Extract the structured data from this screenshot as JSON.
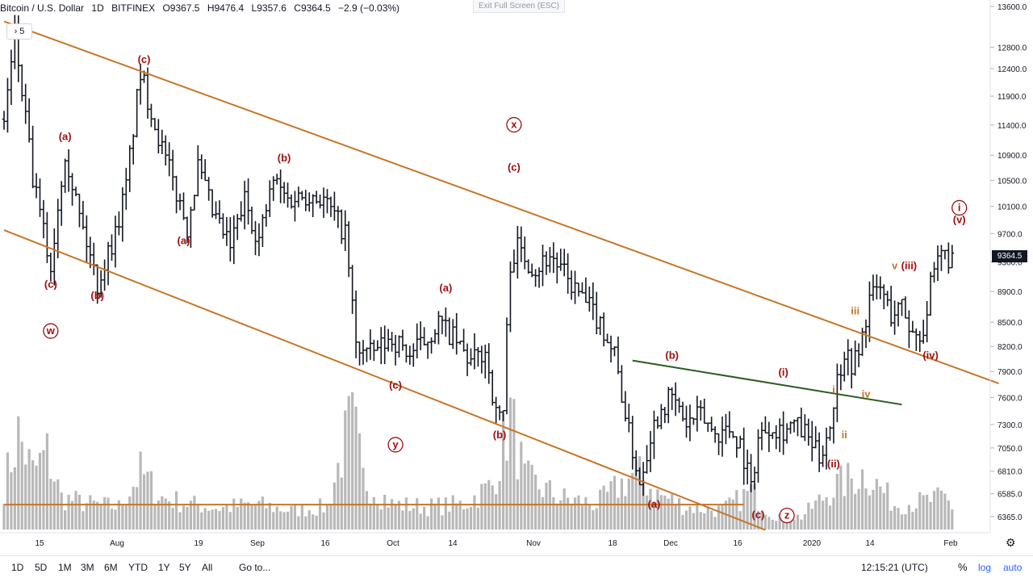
{
  "header": {
    "symbol": "Bitcoin / U.S. Dollar",
    "interval": "1D",
    "exchange": "BITFINEX",
    "open": "O9367.5",
    "high": "H9476.4",
    "low": "L9357.6",
    "close": "C9364.5",
    "change": "−2.9 (−0.03%)"
  },
  "exit_fullscreen": "Exit Full Screen (ESC)",
  "collapse_button": "5",
  "current_price": "9364.5",
  "bottom_bar": {
    "timeframes": [
      "1D",
      "5D",
      "1M",
      "3M",
      "6M",
      "YTD",
      "1Y",
      "5Y",
      "All"
    ],
    "goto": "Go to...",
    "time": "12:15:21 (UTC)",
    "percent": "%",
    "log": "log",
    "auto": "auto"
  },
  "chart_data": {
    "type": "ohlc",
    "title": "",
    "y_axis": {
      "scale": "log",
      "range": [
        6250,
        13600
      ],
      "ticks": [
        6365,
        6585,
        6810,
        7050,
        7300,
        7600,
        7900,
        8200,
        8500,
        8900,
        9300,
        9700,
        10100,
        10500,
        10900,
        11400,
        11900,
        12400,
        12800,
        13600
      ],
      "tick_labels": [
        "6365.0",
        "6585.0",
        "6810.0",
        "7050.0",
        "7300.0",
        "7600.0",
        "7900.0",
        "8200.0",
        "8500.0",
        "8900.0",
        "9300.0",
        "9700.0",
        "10100.0",
        "10500.0",
        "10900.0",
        "11400.0",
        "11900.0",
        "12400.0",
        "12800.0",
        "13600.0"
      ]
    },
    "x_axis": {
      "tick_labels": [
        "15",
        "Aug",
        "19",
        "Sep",
        "16",
        "Oct",
        "14",
        "Nov",
        "18",
        "Dec",
        "16",
        "2020",
        "14",
        "Feb"
      ]
    },
    "price_path": [
      {
        "t": 0,
        "p": 11500
      },
      {
        "t": 3,
        "p": 12950
      },
      {
        "t": 8,
        "p": 10500
      },
      {
        "t": 13,
        "p": 9200
      },
      {
        "t": 17,
        "p": 11000
      },
      {
        "t": 21,
        "p": 9950
      },
      {
        "t": 26,
        "p": 9000
      },
      {
        "t": 31,
        "p": 9700
      },
      {
        "t": 34,
        "p": 10400
      },
      {
        "t": 38,
        "p": 12300
      },
      {
        "t": 44,
        "p": 11000
      },
      {
        "t": 48,
        "p": 10300
      },
      {
        "t": 51,
        "p": 9800
      },
      {
        "t": 54,
        "p": 10700
      },
      {
        "t": 58,
        "p": 10000
      },
      {
        "t": 63,
        "p": 9500
      },
      {
        "t": 67,
        "p": 10200
      },
      {
        "t": 71,
        "p": 9600
      },
      {
        "t": 75,
        "p": 10500
      },
      {
        "t": 79,
        "p": 10200
      },
      {
        "t": 85,
        "p": 10300
      },
      {
        "t": 89,
        "p": 10200
      },
      {
        "t": 95,
        "p": 9700
      },
      {
        "t": 98,
        "p": 8200
      },
      {
        "t": 102,
        "p": 8100
      },
      {
        "t": 108,
        "p": 8300
      },
      {
        "t": 113,
        "p": 8100
      },
      {
        "t": 117,
        "p": 8250
      },
      {
        "t": 121,
        "p": 8500
      },
      {
        "t": 125,
        "p": 8300
      },
      {
        "t": 130,
        "p": 8000
      },
      {
        "t": 134,
        "p": 8150
      },
      {
        "t": 137,
        "p": 7400
      },
      {
        "t": 139,
        "p": 7450
      },
      {
        "t": 141,
        "p": 9300
      },
      {
        "t": 143,
        "p": 9500
      },
      {
        "t": 148,
        "p": 9200
      },
      {
        "t": 152,
        "p": 9400
      },
      {
        "t": 157,
        "p": 9050
      },
      {
        "t": 161,
        "p": 8800
      },
      {
        "t": 166,
        "p": 8500
      },
      {
        "t": 170,
        "p": 8100
      },
      {
        "t": 174,
        "p": 7200
      },
      {
        "t": 177,
        "p": 6700
      },
      {
        "t": 180,
        "p": 7200
      },
      {
        "t": 183,
        "p": 7500
      },
      {
        "t": 186,
        "p": 7600
      },
      {
        "t": 190,
        "p": 7300
      },
      {
        "t": 194,
        "p": 7400
      },
      {
        "t": 198,
        "p": 7200
      },
      {
        "t": 202,
        "p": 7250
      },
      {
        "t": 205,
        "p": 7100
      },
      {
        "t": 208,
        "p": 6650
      },
      {
        "t": 210,
        "p": 7150
      },
      {
        "t": 213,
        "p": 7300
      },
      {
        "t": 217,
        "p": 7250
      },
      {
        "t": 220,
        "p": 7300
      },
      {
        "t": 223,
        "p": 7200
      },
      {
        "t": 227,
        "p": 6950
      },
      {
        "t": 230,
        "p": 7300
      },
      {
        "t": 232,
        "p": 7800
      },
      {
        "t": 234,
        "p": 8150
      },
      {
        "t": 236,
        "p": 8000
      },
      {
        "t": 238,
        "p": 8100
      },
      {
        "t": 241,
        "p": 8800
      },
      {
        "t": 244,
        "p": 8950
      },
      {
        "t": 247,
        "p": 8600
      },
      {
        "t": 250,
        "p": 8700
      },
      {
        "t": 253,
        "p": 8350
      },
      {
        "t": 256,
        "p": 8400
      },
      {
        "t": 258,
        "p": 8950
      },
      {
        "t": 261,
        "p": 9400
      },
      {
        "t": 264,
        "p": 9350
      }
    ],
    "volume_path": [
      {
        "t": 0,
        "v": 0.35
      },
      {
        "t": 4,
        "v": 0.75
      },
      {
        "t": 8,
        "v": 0.45
      },
      {
        "t": 12,
        "v": 0.6
      },
      {
        "t": 16,
        "v": 0.25
      },
      {
        "t": 24,
        "v": 0.2
      },
      {
        "t": 32,
        "v": 0.18
      },
      {
        "t": 38,
        "v": 0.45
      },
      {
        "t": 44,
        "v": 0.25
      },
      {
        "t": 52,
        "v": 0.2
      },
      {
        "t": 60,
        "v": 0.17
      },
      {
        "t": 70,
        "v": 0.2
      },
      {
        "t": 80,
        "v": 0.15
      },
      {
        "t": 90,
        "v": 0.18
      },
      {
        "t": 97,
        "v": 0.9
      },
      {
        "t": 100,
        "v": 0.4
      },
      {
        "t": 108,
        "v": 0.2
      },
      {
        "t": 118,
        "v": 0.18
      },
      {
        "t": 128,
        "v": 0.2
      },
      {
        "t": 136,
        "v": 0.35
      },
      {
        "t": 141,
        "v": 0.9
      },
      {
        "t": 145,
        "v": 0.4
      },
      {
        "t": 155,
        "v": 0.25
      },
      {
        "t": 165,
        "v": 0.2
      },
      {
        "t": 176,
        "v": 0.45
      },
      {
        "t": 182,
        "v": 0.28
      },
      {
        "t": 190,
        "v": 0.18
      },
      {
        "t": 200,
        "v": 0.15
      },
      {
        "t": 208,
        "v": 0.3
      },
      {
        "t": 214,
        "v": 0.12
      },
      {
        "t": 222,
        "v": 0.1
      },
      {
        "t": 232,
        "v": 0.35
      },
      {
        "t": 240,
        "v": 0.45
      },
      {
        "t": 248,
        "v": 0.2
      },
      {
        "t": 256,
        "v": 0.22
      },
      {
        "t": 262,
        "v": 0.25
      },
      {
        "t": 265,
        "v": 0.15
      }
    ],
    "trendlines": [
      {
        "name": "upper-channel",
        "color": "#c87526",
        "from": {
          "t": 0,
          "p": 13300
        },
        "to": {
          "t": 277,
          "p": 7760
        }
      },
      {
        "name": "lower-channel",
        "color": "#c87526",
        "from": {
          "t": 0,
          "p": 9750
        },
        "to": {
          "t": 212,
          "p": 6240
        }
      },
      {
        "name": "horizontal-support",
        "color": "#c87526",
        "from": {
          "t": 0,
          "p": 6480
        },
        "to": {
          "t": 206,
          "p": 6480
        }
      },
      {
        "name": "green-trendline",
        "color": "#2d5b21",
        "from": {
          "t": 175,
          "p": 8030
        },
        "to": {
          "t": 250,
          "p": 7520
        }
      }
    ],
    "wave_labels": [
      {
        "text": "(a)",
        "t": 17,
        "p": 11150,
        "color": "#a01010"
      },
      {
        "text": "(c)",
        "t": 13,
        "p": 8950,
        "color": "#a01010"
      },
      {
        "text": "(b)",
        "t": 26,
        "p": 8800,
        "color": "#a01010"
      },
      {
        "text": "w",
        "t": 13,
        "p": 8350,
        "color": "#a01010",
        "circled": true
      },
      {
        "text": "(c)",
        "t": 39,
        "p": 12500,
        "color": "#a01010"
      },
      {
        "text": "(a)",
        "t": 50,
        "p": 9550,
        "color": "#a01010"
      },
      {
        "text": "(b)",
        "t": 78,
        "p": 10800,
        "color": "#a01010"
      },
      {
        "text": "(c)",
        "t": 109,
        "p": 7700,
        "color": "#a01010"
      },
      {
        "text": "y",
        "t": 109,
        "p": 7050,
        "color": "#a01010",
        "circled": true
      },
      {
        "text": "(a)",
        "t": 123,
        "p": 8900,
        "color": "#a01010"
      },
      {
        "text": "(b)",
        "t": 138,
        "p": 7150,
        "color": "#a01010"
      },
      {
        "text": "x",
        "t": 142,
        "p": 11350,
        "color": "#a01010",
        "circled": true
      },
      {
        "text": "(c)",
        "t": 142,
        "p": 10650,
        "color": "#a01010"
      },
      {
        "text": "(b)",
        "t": 186,
        "p": 8050,
        "color": "#a01010"
      },
      {
        "text": "(a)",
        "t": 181,
        "p": 6450,
        "color": "#a01010"
      },
      {
        "text": "(c)",
        "t": 210,
        "p": 6350,
        "color": "#a01010"
      },
      {
        "text": "z",
        "t": 218,
        "p": 6345,
        "color": "#a01010",
        "circled": true
      },
      {
        "text": "(i)",
        "t": 217,
        "p": 7850,
        "color": "#a01010"
      },
      {
        "text": "(ii)",
        "t": 231,
        "p": 6850,
        "color": "#a01010"
      },
      {
        "text": "i",
        "t": 231,
        "p": 7650,
        "color": "#c87526"
      },
      {
        "text": "ii",
        "t": 234,
        "p": 7150,
        "color": "#c87526"
      },
      {
        "text": "iii",
        "t": 237,
        "p": 8600,
        "color": "#c87526"
      },
      {
        "text": "iv",
        "t": 240,
        "p": 7600,
        "color": "#c87526"
      },
      {
        "text": "v",
        "t": 248,
        "p": 9200,
        "color": "#c87526"
      },
      {
        "text": "(iii)",
        "t": 252,
        "p": 9200,
        "color": "#a01010"
      },
      {
        "text": "(iv)",
        "t": 258,
        "p": 8050,
        "color": "#a01010"
      },
      {
        "text": "(v)",
        "t": 266,
        "p": 9850,
        "color": "#a01010"
      },
      {
        "text": "i",
        "t": 266,
        "p": 10030,
        "color": "#a01010",
        "circled": true
      }
    ]
  }
}
